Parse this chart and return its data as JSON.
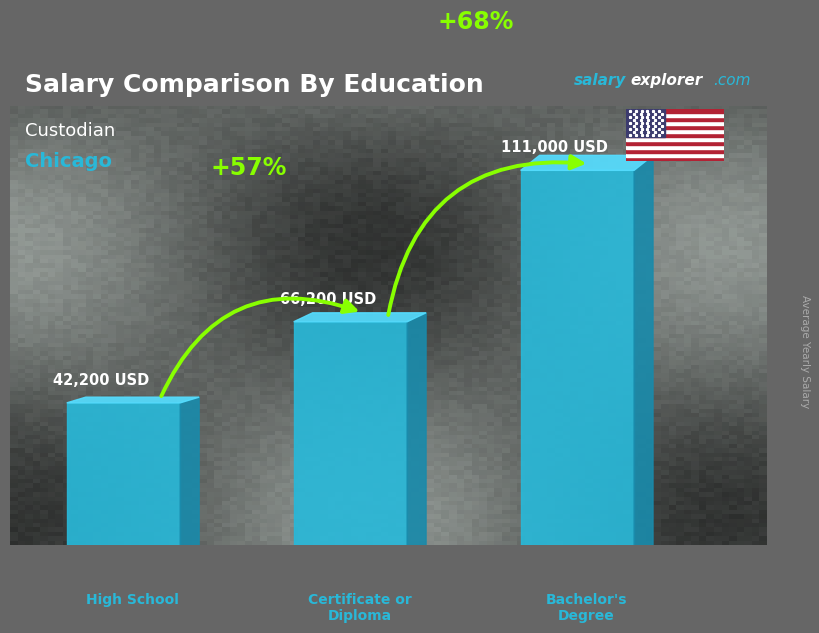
{
  "title": "Salary Comparison By Education",
  "subtitle1": "Custodian",
  "subtitle2": "Chicago",
  "categories": [
    "High School",
    "Certificate or\nDiploma",
    "Bachelor's\nDegree"
  ],
  "values": [
    42200,
    66200,
    111000
  ],
  "labels": [
    "42,200 USD",
    "66,200 USD",
    "111,000 USD"
  ],
  "bar_color_front": "#29b8d8",
  "bar_color_top": "#55ddff",
  "bar_color_side": "#1a8aaa",
  "pct_labels": [
    "+57%",
    "+68%"
  ],
  "pct_color": "#88ff00",
  "bg_color": "#666666",
  "title_color": "#ffffff",
  "subtitle1_color": "#ffffff",
  "subtitle2_color": "#29b8d8",
  "label_color": "#ffffff",
  "cat_color": "#29b8d8",
  "ylabel": "Average Yearly Salary",
  "ylabel_color": "#aaaaaa",
  "watermark_salary": "salary",
  "watermark_explorer": "explorer",
  "watermark_com": ".com",
  "watermark_color_salary": "#29b8d8",
  "watermark_color_rest": "#ffffff"
}
